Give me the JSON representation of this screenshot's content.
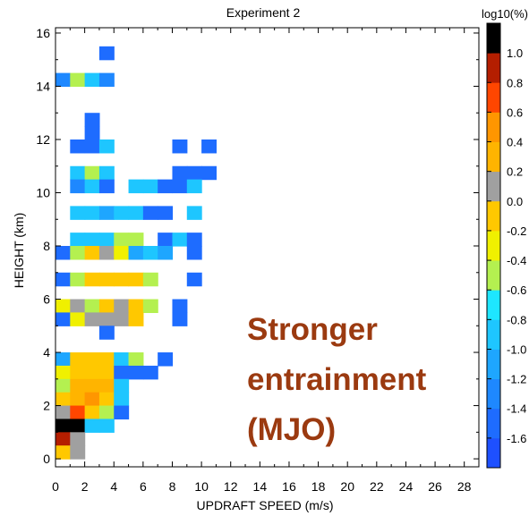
{
  "chart_data": {
    "type": "heatmap",
    "title": "Experiment 2",
    "xlabel": "UPDRAFT SPEED (m/s)",
    "ylabel": "HEIGHT (km)",
    "xlim": [
      0,
      29
    ],
    "ylim": [
      -0.3,
      16.2
    ],
    "x_ticks": [
      "0",
      "2",
      "4",
      "6",
      "8",
      "10",
      "12",
      "14",
      "16",
      "18",
      "20",
      "22",
      "24",
      "26",
      "28"
    ],
    "y_ticks": [
      "0",
      "2",
      "4",
      "6",
      "8",
      "10",
      "12",
      "14",
      "16"
    ],
    "x_bin_width": 1,
    "y_bin_width": 0.5,
    "colorbar": {
      "label": "log10(%)",
      "ticks": [
        "1.0",
        "0.8",
        "0.6",
        "0.4",
        "0.2",
        "0.0",
        "-0.2",
        "-0.4",
        "-0.6",
        "-0.8",
        "-1.0",
        "-1.2",
        "-1.4",
        "-1.6"
      ],
      "levels": [
        {
          "min": -1.8,
          "color": "#1e50ff"
        },
        {
          "min": -1.6,
          "color": "#1e6cff"
        },
        {
          "min": -1.4,
          "color": "#1e88ff"
        },
        {
          "min": -1.2,
          "color": "#1ea6ff"
        },
        {
          "min": -1.0,
          "color": "#1ec6ff"
        },
        {
          "min": -0.8,
          "color": "#1ee6ff"
        },
        {
          "min": -0.6,
          "color": "#b4f050"
        },
        {
          "min": -0.4,
          "color": "#f0f000"
        },
        {
          "min": -0.2,
          "color": "#ffc800"
        },
        {
          "min": 0.0,
          "color": "#a0a0a0"
        },
        {
          "min": 0.2,
          "color": "#ffb400"
        },
        {
          "min": 0.4,
          "color": "#ff9600"
        },
        {
          "min": 0.6,
          "color": "#ff4600"
        },
        {
          "min": 0.8,
          "color": "#b41e00"
        },
        {
          "min": 1.0,
          "color": "#000000"
        }
      ]
    },
    "cells": [
      [
        3,
        15,
        -1.5
      ],
      [
        0,
        14,
        -1.3
      ],
      [
        1,
        14,
        -0.5
      ],
      [
        2,
        14,
        -0.9
      ],
      [
        3,
        14,
        -1.3
      ],
      [
        2,
        12.5,
        -1.5
      ],
      [
        2,
        12,
        -1.5
      ],
      [
        1,
        11.5,
        -1.5
      ],
      [
        2,
        11.5,
        -1.5
      ],
      [
        3,
        11.5,
        -1.0
      ],
      [
        8,
        11.5,
        -1.5
      ],
      [
        10,
        11.5,
        -1.5
      ],
      [
        1,
        10.5,
        -1.0
      ],
      [
        2,
        10.5,
        -0.5
      ],
      [
        3,
        10.5,
        -1.0
      ],
      [
        8,
        10.5,
        -1.5
      ],
      [
        9,
        10.5,
        -1.5
      ],
      [
        10,
        10.5,
        -1.5
      ],
      [
        1,
        10,
        -1.3
      ],
      [
        2,
        10,
        -0.9
      ],
      [
        3,
        10,
        -1.5
      ],
      [
        5,
        10,
        -1.0
      ],
      [
        6,
        10,
        -1.0
      ],
      [
        7,
        10,
        -1.5
      ],
      [
        8,
        10,
        -1.5
      ],
      [
        9,
        10,
        -0.9
      ],
      [
        1,
        9,
        -0.9
      ],
      [
        2,
        9,
        -0.9
      ],
      [
        3,
        9,
        -1.1
      ],
      [
        4,
        9,
        -0.9
      ],
      [
        5,
        9,
        -0.9
      ],
      [
        6,
        9,
        -1.5
      ],
      [
        7,
        9,
        -1.5
      ],
      [
        9,
        9,
        -0.9
      ],
      [
        1,
        8,
        -0.9
      ],
      [
        2,
        8,
        -0.9
      ],
      [
        3,
        8,
        -0.9
      ],
      [
        4,
        8,
        -0.5
      ],
      [
        5,
        8,
        -0.5
      ],
      [
        7,
        8,
        -1.5
      ],
      [
        8,
        8,
        -0.9
      ],
      [
        9,
        8,
        -1.5
      ],
      [
        0,
        7.5,
        -1.5
      ],
      [
        1,
        7.5,
        -0.5
      ],
      [
        2,
        7.5,
        -0.1
      ],
      [
        3,
        7.5,
        0.1
      ],
      [
        4,
        7.5,
        -0.3
      ],
      [
        5,
        7.5,
        -1.1
      ],
      [
        6,
        7.5,
        -0.9
      ],
      [
        7,
        7.5,
        -1.1
      ],
      [
        9,
        7.5,
        -1.5
      ],
      [
        0,
        6.5,
        -1.5
      ],
      [
        1,
        6.5,
        -0.5
      ],
      [
        2,
        6.5,
        -0.1
      ],
      [
        3,
        6.5,
        -0.1
      ],
      [
        4,
        6.5,
        -0.1
      ],
      [
        5,
        6.5,
        -0.1
      ],
      [
        6,
        6.5,
        -0.5
      ],
      [
        9,
        6.5,
        -1.5
      ],
      [
        0,
        5.5,
        -0.3
      ],
      [
        1,
        5.5,
        0.1
      ],
      [
        2,
        5.5,
        -0.5
      ],
      [
        3,
        5.5,
        -0.1
      ],
      [
        4,
        5.5,
        0.1
      ],
      [
        5,
        5.5,
        -0.1
      ],
      [
        6,
        5.5,
        -0.5
      ],
      [
        8,
        5.5,
        -1.5
      ],
      [
        0,
        5,
        -1.5
      ],
      [
        1,
        5,
        -0.3
      ],
      [
        2,
        5,
        0.1
      ],
      [
        3,
        5,
        0.1
      ],
      [
        4,
        5,
        0.1
      ],
      [
        5,
        5,
        -0.1
      ],
      [
        8,
        5,
        -1.5
      ],
      [
        3,
        4.5,
        -1.5
      ],
      [
        0,
        3.5,
        -1.1
      ],
      [
        1,
        3.5,
        -0.1
      ],
      [
        2,
        3.5,
        -0.1
      ],
      [
        3,
        3.5,
        -0.1
      ],
      [
        4,
        3.5,
        -0.9
      ],
      [
        5,
        3.5,
        -0.5
      ],
      [
        7,
        3.5,
        -1.5
      ],
      [
        0,
        3,
        -0.3
      ],
      [
        1,
        3,
        -0.1
      ],
      [
        2,
        3,
        -0.1
      ],
      [
        3,
        3,
        -0.1
      ],
      [
        4,
        3,
        -1.5
      ],
      [
        5,
        3,
        -1.5
      ],
      [
        6,
        3,
        -1.5
      ],
      [
        0,
        2.5,
        -0.5
      ],
      [
        1,
        2.5,
        0.3
      ],
      [
        2,
        2.5,
        0.3
      ],
      [
        3,
        2.5,
        0.3
      ],
      [
        4,
        2.5,
        -0.9
      ],
      [
        0,
        2,
        -0.1
      ],
      [
        1,
        2,
        0.3
      ],
      [
        2,
        2,
        0.5
      ],
      [
        3,
        2,
        -0.1
      ],
      [
        4,
        2,
        -1.0
      ],
      [
        0,
        1.5,
        0.1
      ],
      [
        1,
        1.5,
        0.7
      ],
      [
        2,
        1.5,
        -0.1
      ],
      [
        3,
        1.5,
        -0.5
      ],
      [
        4,
        1.5,
        -1.5
      ],
      [
        0,
        1,
        1.1
      ],
      [
        1,
        1,
        1.1
      ],
      [
        2,
        1,
        -0.9
      ],
      [
        3,
        1,
        -1.0
      ],
      [
        0,
        0.5,
        0.9
      ],
      [
        1,
        0.5,
        0.1
      ],
      [
        0,
        0,
        -0.1
      ],
      [
        1,
        0,
        0.1
      ]
    ],
    "annotation": [
      "Stronger",
      "entrainment",
      "(MJO)"
    ]
  }
}
